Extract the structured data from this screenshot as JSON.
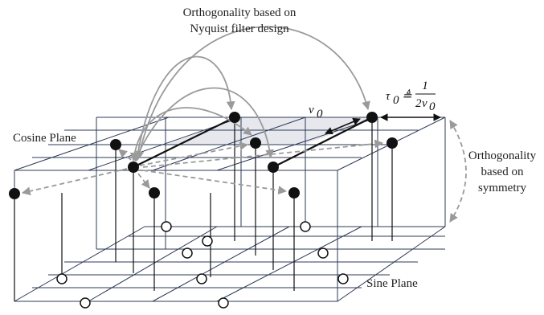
{
  "labels": {
    "top_line1": "Orthogonality based on",
    "top_line2": "Nyquist filter design",
    "cosine_plane": "Cosine Plane",
    "sine_plane": "Sine Plane",
    "right_line1": "Orthogonality",
    "right_line2": "based on",
    "right_line3": "symmetry"
  },
  "math": {
    "tau_sym": "τ",
    "tau_sub": "0",
    "defeq": "≜",
    "frac_num": "1",
    "frac_den_coef": "2",
    "frac_den_sym": "ν",
    "frac_den_sub": "0",
    "nu_sym": "ν",
    "nu_sub": "0"
  },
  "colors": {
    "line": "#111111",
    "arrow_gray": "#9a9a9a",
    "shade": "#e6e8ee",
    "filled_dot": "#111111",
    "open_dot_fill": "#ffffff"
  }
}
